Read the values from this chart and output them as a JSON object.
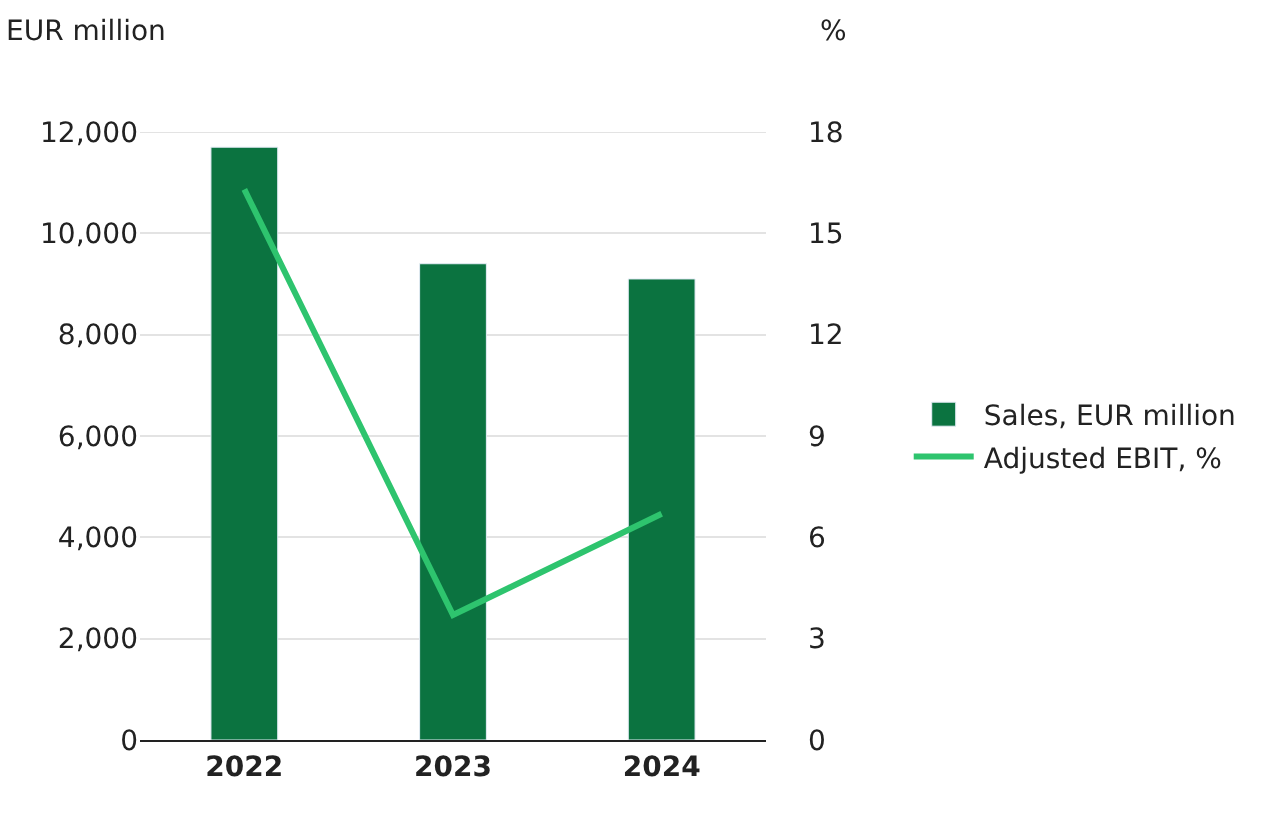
{
  "chart_data": {
    "type": "bar",
    "ylabel": "EUR million",
    "y2label": "%",
    "categories": [
      "2022",
      "2023",
      "2024"
    ],
    "series": [
      {
        "name": "Sales, EUR million",
        "color": "#0b7340",
        "values": [
          11700,
          9400,
          9100
        ]
      },
      {
        "name": "Adjusted EBIT, %",
        "type": "line",
        "axis": "y2",
        "color": "#2ec46e",
        "marker": "none",
        "line_style": "solid",
        "values": [
          16.3,
          3.7,
          6.7
        ]
      }
    ],
    "ylim": [
      0,
      12000
    ],
    "yticks": [
      {
        "value": 0,
        "label": "0"
      },
      {
        "value": 2000,
        "label": "2,000"
      },
      {
        "value": 4000,
        "label": "4,000"
      },
      {
        "value": 6000,
        "label": "6,000"
      },
      {
        "value": 8000,
        "label": "8,000"
      },
      {
        "value": 10000,
        "label": "10,000"
      },
      {
        "value": 12000,
        "label": "12,000"
      }
    ],
    "y2lim": [
      0,
      18
    ],
    "y2ticks": [
      0,
      3,
      6,
      9,
      12,
      15,
      18
    ],
    "grid": "y",
    "legend": "right"
  }
}
